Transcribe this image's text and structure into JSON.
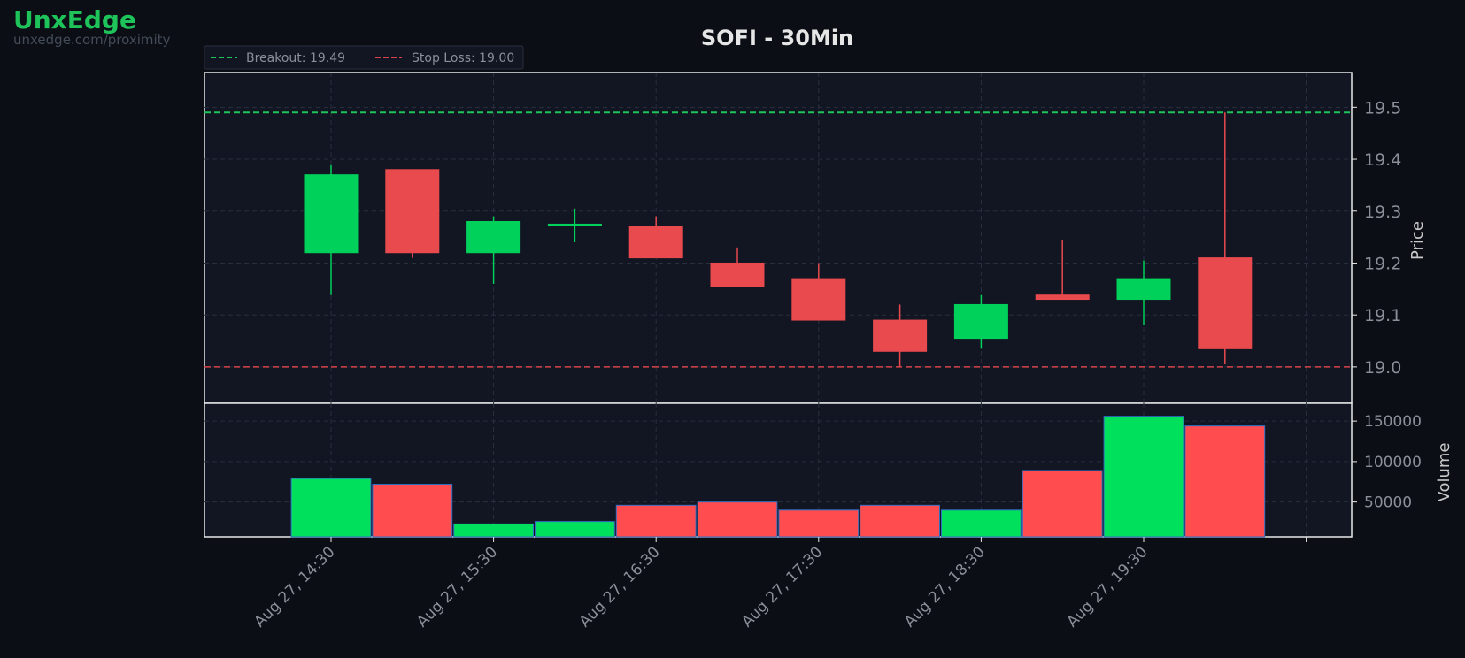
{
  "brand": {
    "name": "UnxEdge",
    "url": "unxedge.com/proximity"
  },
  "colors": {
    "background": "#0b0e15",
    "panel": "#121522",
    "up": "#00d15a",
    "down": "#e84a4e",
    "volume_up": "#00e05c",
    "volume_down": "#ff4c4f",
    "breakout_line": "#1ec35a",
    "stop_line": "#d9434a",
    "axis_text": "#8a8f98",
    "title_text": "#e6e6e6"
  },
  "chart_data": {
    "type": "candlestick",
    "title": "SOFI - 30Min",
    "timeframe": "30Min",
    "x_tick_labels": [
      "Aug 27, 14:30",
      "Aug 27, 15:30",
      "Aug 27, 16:30",
      "Aug 27, 17:30",
      "Aug 27, 18:30",
      "Aug 27, 19:30"
    ],
    "candles": [
      {
        "time": "14:30",
        "open": 19.22,
        "high": 19.39,
        "low": 19.14,
        "close": 19.37,
        "volume": 79000
      },
      {
        "time": "15:00",
        "open": 19.38,
        "high": 19.38,
        "low": 19.21,
        "close": 19.22,
        "volume": 72000
      },
      {
        "time": "15:30",
        "open": 19.22,
        "high": 19.29,
        "low": 19.16,
        "close": 19.28,
        "volume": 23000
      },
      {
        "time": "16:00",
        "open": 19.275,
        "high": 19.305,
        "low": 19.24,
        "close": 19.275,
        "volume": 26000
      },
      {
        "time": "16:30",
        "open": 19.27,
        "high": 19.29,
        "low": 19.21,
        "close": 19.21,
        "volume": 46000
      },
      {
        "time": "17:00",
        "open": 19.2,
        "high": 19.23,
        "low": 19.155,
        "close": 19.155,
        "volume": 50000
      },
      {
        "time": "17:30",
        "open": 19.17,
        "high": 19.2,
        "low": 19.09,
        "close": 19.09,
        "volume": 40000
      },
      {
        "time": "18:00",
        "open": 19.09,
        "high": 19.12,
        "low": 19.0,
        "close": 19.03,
        "volume": 46000
      },
      {
        "time": "18:30",
        "open": 19.055,
        "high": 19.14,
        "low": 19.035,
        "close": 19.12,
        "volume": 40000
      },
      {
        "time": "19:00",
        "open": 19.14,
        "high": 19.245,
        "low": 19.13,
        "close": 19.13,
        "volume": 89000
      },
      {
        "time": "19:30",
        "open": 19.13,
        "high": 19.205,
        "low": 19.08,
        "close": 19.17,
        "volume": 156000
      },
      {
        "time": "20:00",
        "open": 19.21,
        "high": 19.49,
        "low": 19.005,
        "close": 19.035,
        "volume": 144000
      }
    ],
    "levels": [
      {
        "label": "Breakout: 19.49",
        "value": 19.49,
        "style": "dashed",
        "color": "#1ec35a"
      },
      {
        "label": "Stop Loss: 19.00",
        "value": 19.0,
        "style": "dashed",
        "color": "#d9434a"
      }
    ],
    "price_axis": {
      "label": "Price",
      "ticks": [
        "19.0",
        "19.1",
        "19.2",
        "19.3",
        "19.4",
        "19.5"
      ],
      "ylim": [
        18.93,
        19.567
      ]
    },
    "volume_axis": {
      "label": "Volume",
      "ticks": [
        "50000",
        "100000",
        "150000"
      ],
      "ylim": [
        7000,
        172000
      ]
    },
    "legend_position": "top-left",
    "grid": true
  }
}
